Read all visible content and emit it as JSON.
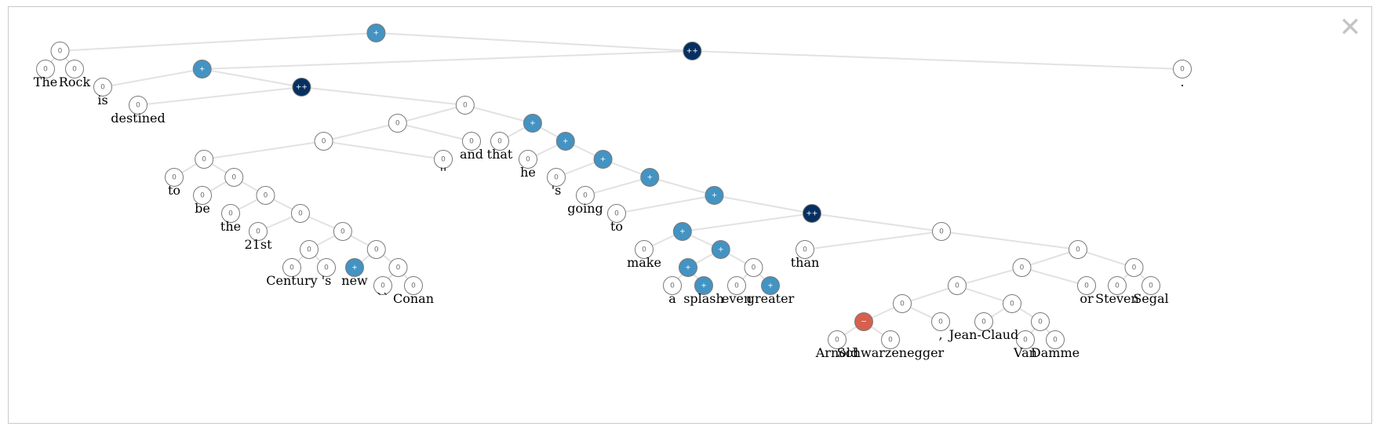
{
  "window": {
    "close_label": "✕"
  },
  "sentiment_colors": {
    "0": "#ffffff",
    "+": "#4393c3",
    "++": "#053061",
    "-": "#d6604d"
  },
  "edge_color": "#e2e2e2",
  "tree": {
    "label": "+",
    "children": [
      {
        "label": "0",
        "children": [
          {
            "label": "0",
            "word": "The"
          },
          {
            "label": "0",
            "word": "Rock"
          }
        ]
      },
      {
        "label": "++",
        "children": [
          {
            "label": "+",
            "children": [
              {
                "label": "0",
                "word": "is"
              },
              {
                "label": "++",
                "children": [
                  {
                    "label": "0",
                    "word": "destined"
                  },
                  {
                    "label": "0",
                    "children": [
                      {
                        "label": "0",
                        "children": [
                          {
                            "label": "0",
                            "children": [
                              {
                                "label": "0",
                                "children": [
                                  {
                                    "label": "0",
                                    "word": "to"
                                  },
                                  {
                                    "label": "0",
                                    "children": [
                                      {
                                        "label": "0",
                                        "word": "be"
                                      },
                                      {
                                        "label": "0",
                                        "children": [
                                          {
                                            "label": "0",
                                            "word": "the"
                                          },
                                          {
                                            "label": "0",
                                            "children": [
                                              {
                                                "label": "0",
                                                "word": "21st"
                                              },
                                              {
                                                "label": "0",
                                                "children": [
                                                  {
                                                    "label": "0",
                                                    "children": [
                                                      {
                                                        "label": "0",
                                                        "word": "Century"
                                                      },
                                                      {
                                                        "label": "0",
                                                        "word": "'s"
                                                      }
                                                    ]
                                                  },
                                                  {
                                                    "label": "0",
                                                    "children": [
                                                      {
                                                        "label": "+",
                                                        "word": "new"
                                                      },
                                                      {
                                                        "label": "0",
                                                        "children": [
                                                          {
                                                            "label": "0",
                                                            "word": "``"
                                                          },
                                                          {
                                                            "label": "0",
                                                            "word": "Conan"
                                                          }
                                                        ]
                                                      }
                                                    ]
                                                  }
                                                ]
                                              }
                                            ]
                                          }
                                        ]
                                      }
                                    ]
                                  }
                                ]
                              },
                              {
                                "label": "0",
                                "word": "''"
                              }
                            ]
                          },
                          {
                            "label": "0",
                            "word": "and"
                          }
                        ]
                      },
                      {
                        "label": "+",
                        "children": [
                          {
                            "label": "0",
                            "word": "that"
                          },
                          {
                            "label": "+",
                            "children": [
                              {
                                "label": "0",
                                "word": "he"
                              },
                              {
                                "label": "+",
                                "children": [
                                  {
                                    "label": "0",
                                    "word": "'s"
                                  },
                                  {
                                    "label": "+",
                                    "children": [
                                      {
                                        "label": "0",
                                        "word": "going"
                                      },
                                      {
                                        "label": "+",
                                        "children": [
                                          {
                                            "label": "0",
                                            "word": "to"
                                          },
                                          {
                                            "label": "++",
                                            "children": [
                                              {
                                                "label": "+",
                                                "children": [
                                                  {
                                                    "label": "0",
                                                    "word": "make"
                                                  },
                                                  {
                                                    "label": "+",
                                                    "children": [
                                                      {
                                                        "label": "+",
                                                        "children": [
                                                          {
                                                            "label": "0",
                                                            "word": "a"
                                                          },
                                                          {
                                                            "label": "+",
                                                            "word": "splash"
                                                          }
                                                        ]
                                                      },
                                                      {
                                                        "label": "0",
                                                        "children": [
                                                          {
                                                            "label": "0",
                                                            "word": "even"
                                                          },
                                                          {
                                                            "label": "+",
                                                            "word": "greater"
                                                          }
                                                        ]
                                                      }
                                                    ]
                                                  }
                                                ]
                                              },
                                              {
                                                "label": "0",
                                                "children": [
                                                  {
                                                    "label": "0",
                                                    "word": "than"
                                                  },
                                                  {
                                                    "label": "0",
                                                    "children": [
                                                      {
                                                        "label": "0",
                                                        "children": [
                                                          {
                                                            "label": "0",
                                                            "children": [
                                                              {
                                                                "label": "0",
                                                                "children": [
                                                                  {
                                                                    "label": "-",
                                                                    "children": [
                                                                      {
                                                                        "label": "0",
                                                                        "word": "Arnold"
                                                                      },
                                                                      {
                                                                        "label": "0",
                                                                        "word": "Schwarzenegger"
                                                                      }
                                                                    ]
                                                                  },
                                                                  {
                                                                    "label": "0",
                                                                    "word": ","
                                                                  }
                                                                ]
                                                              },
                                                              {
                                                                "label": "0",
                                                                "children": [
                                                                  {
                                                                    "label": "0",
                                                                    "word": "Jean-Claud"
                                                                  },
                                                                  {
                                                                    "label": "0",
                                                                    "children": [
                                                                      {
                                                                        "label": "0",
                                                                        "word": "Van"
                                                                      },
                                                                      {
                                                                        "label": "0",
                                                                        "word": "Damme"
                                                                      }
                                                                    ]
                                                                  }
                                                                ]
                                                              }
                                                            ]
                                                          },
                                                          {
                                                            "label": "0",
                                                            "word": "or"
                                                          }
                                                        ]
                                                      },
                                                      {
                                                        "label": "0",
                                                        "children": [
                                                          {
                                                            "label": "0",
                                                            "word": "Steven"
                                                          },
                                                          {
                                                            "label": "0",
                                                            "word": "Segal"
                                                          }
                                                        ]
                                                      }
                                                    ]
                                                  }
                                                ]
                                              }
                                            ]
                                          }
                                        ]
                                      }
                                    ]
                                  }
                                ]
                              }
                            ]
                          }
                        ]
                      }
                    ]
                  }
                ]
              }
            ]
          },
          {
            "label": "0",
            "word": "."
          }
        ]
      }
    ]
  }
}
